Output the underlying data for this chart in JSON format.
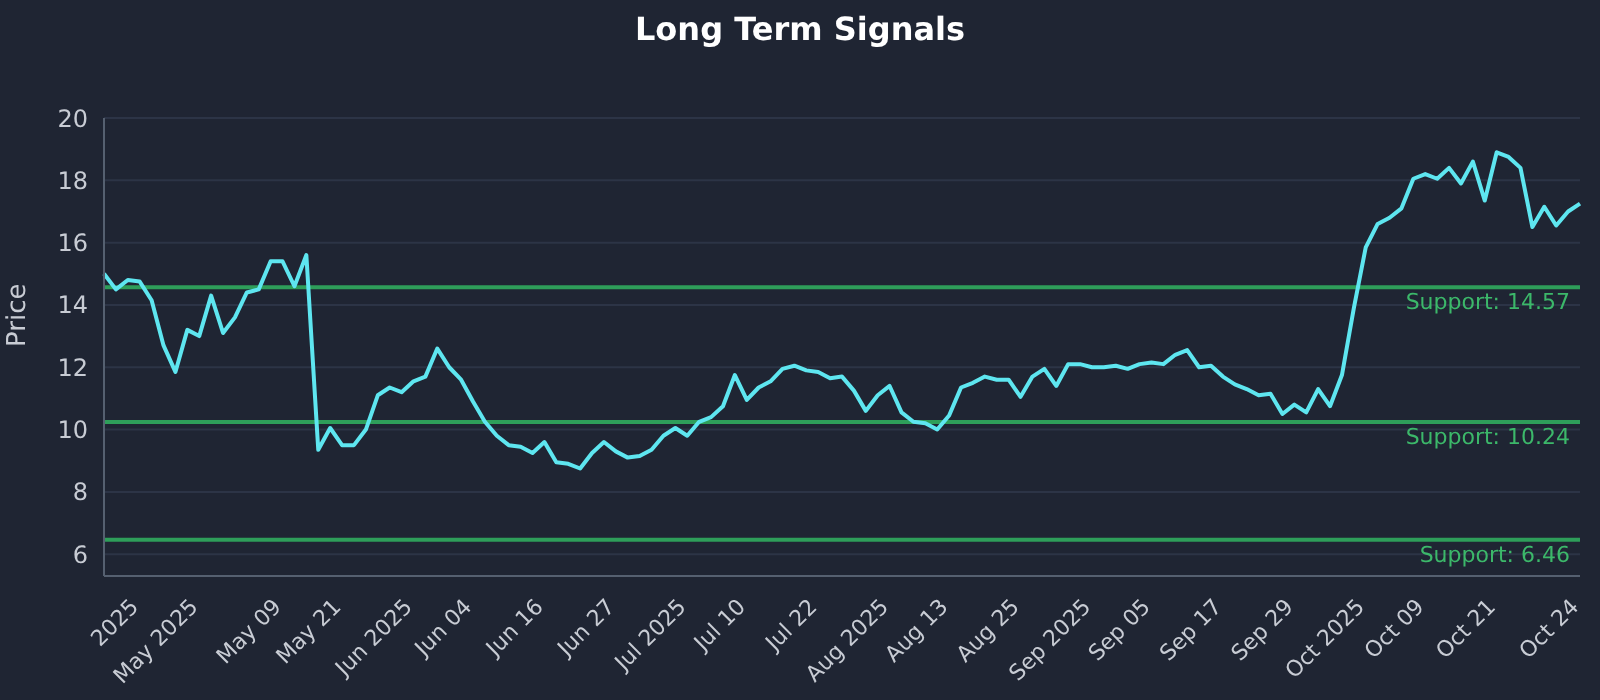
{
  "chart_data": {
    "type": "line",
    "title": "Long Term Signals",
    "ylabel": "Price",
    "categories": [
      null,
      null,
      null,
      "2025",
      null,
      null,
      null,
      null,
      "May 2025",
      null,
      null,
      null,
      null,
      null,
      null,
      "May 09",
      null,
      null,
      null,
      null,
      "May 21",
      null,
      null,
      null,
      null,
      null,
      "Jun 2025",
      null,
      null,
      null,
      null,
      "Jun 04",
      null,
      null,
      null,
      null,
      null,
      "Jun 16",
      null,
      null,
      null,
      null,
      null,
      "Jun 27",
      null,
      null,
      null,
      null,
      null,
      "Jul 2025",
      null,
      null,
      null,
      null,
      "Jul 10",
      null,
      null,
      null,
      null,
      null,
      "Jul 22",
      null,
      null,
      null,
      null,
      null,
      "Aug 2025",
      null,
      null,
      null,
      null,
      "Aug 13",
      null,
      null,
      null,
      null,
      null,
      "Aug 25",
      null,
      null,
      null,
      null,
      null,
      "Sep 2025",
      null,
      null,
      null,
      null,
      "Sep 05",
      null,
      null,
      null,
      null,
      null,
      "Sep 17",
      null,
      null,
      null,
      null,
      null,
      "Sep 29",
      null,
      null,
      null,
      null,
      null,
      "Oct 2025",
      null,
      null,
      null,
      null,
      "Oct 09",
      null,
      null,
      null,
      null,
      null,
      "Oct 21",
      null,
      null,
      null,
      null,
      null,
      null,
      "Oct 24"
    ],
    "series": [
      {
        "color": "#5ee6f0",
        "values": [
          15.0,
          14.5,
          14.8,
          14.75,
          14.15,
          12.7,
          11.85,
          13.2,
          13.0,
          14.3,
          13.1,
          13.6,
          14.4,
          14.5,
          15.4,
          15.4,
          14.6,
          15.6,
          9.35,
          10.05,
          9.5,
          9.5,
          10.0,
          11.1,
          11.35,
          11.2,
          11.55,
          11.7,
          12.6,
          12.0,
          11.6,
          10.9,
          10.25,
          9.8,
          9.5,
          9.45,
          9.25,
          9.6,
          8.95,
          8.9,
          8.75,
          9.25,
          9.6,
          9.3,
          9.1,
          9.15,
          9.35,
          9.8,
          10.05,
          9.8,
          10.25,
          10.4,
          10.75,
          11.75,
          10.95,
          11.35,
          11.55,
          11.95,
          12.05,
          11.9,
          11.85,
          11.65,
          11.7,
          11.25,
          10.6,
          11.1,
          11.4,
          10.55,
          10.25,
          10.2,
          10.0,
          10.45,
          11.35,
          11.5,
          11.7,
          11.6,
          11.6,
          11.05,
          11.7,
          11.95,
          11.4,
          12.1,
          12.1,
          12.0,
          12.0,
          12.05,
          11.95,
          12.1,
          12.15,
          12.1,
          12.4,
          12.55,
          12.0,
          12.05,
          11.7,
          11.45,
          11.3,
          11.1,
          11.15,
          10.5,
          10.8,
          10.55,
          11.3,
          10.75,
          11.75,
          13.9,
          15.85,
          16.6,
          16.8,
          17.1,
          18.05,
          18.2,
          18.05,
          18.4,
          17.9,
          18.6,
          17.35,
          18.9,
          18.75,
          18.4,
          16.5,
          17.15,
          16.55,
          17.0,
          17.25
        ]
      }
    ],
    "ylim": [
      5.3,
      20
    ],
    "yticks": [
      6,
      8,
      10,
      12,
      14,
      16,
      18,
      20
    ],
    "grid": "y",
    "legend": false,
    "marker": "none",
    "line_style": "solid",
    "ref_lines": [
      {
        "axis": "y",
        "value": 14.57,
        "label": "Support: 14.57",
        "color": "#2e9e5a"
      },
      {
        "axis": "y",
        "value": 10.24,
        "label": "Support: 10.24",
        "color": "#2e9e5a"
      },
      {
        "axis": "y",
        "value": 6.46,
        "label": "Support: 6.46",
        "color": "#2e9e5a"
      }
    ]
  }
}
